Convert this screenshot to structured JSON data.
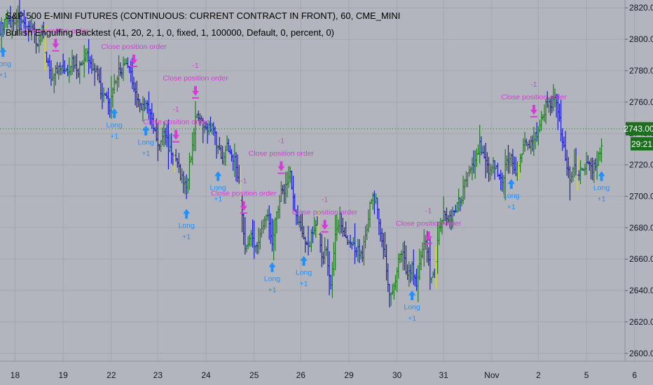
{
  "header": {
    "title": "S&P 500 E-MINI FUTURES (CONTINUOUS: CURRENT CONTRACT IN FRONT), 60, CME_MINI",
    "strategy": "Bullish Engulfing Backtest (41, 20, 2, 1, 0, fixed, 1, 100000, Default, 0, percent, 0)"
  },
  "colors": {
    "background": "#b2b5be",
    "grid": "#a3a6af",
    "bar_up": "#1f7a1f",
    "bar_down": "#1a1acc",
    "bar_flag": "#d8d82a",
    "long_signal": "#1e90ff",
    "exit_signal": "#d63bd6",
    "last_price_bg": "#1f6e1f",
    "axis_text": "#131722"
  },
  "price_axis": {
    "ticks": [
      2600,
      2620,
      2640,
      2660,
      2680,
      2700,
      2720,
      2740,
      2760,
      2780,
      2800,
      2820
    ],
    "labels": [
      "2600.00",
      "2620.00",
      "2640.00",
      "2660.00",
      "2680.00",
      "2700.00",
      "2720.00",
      "2740.00",
      "2760.00",
      "2780.00",
      "2800.00",
      "2820.00"
    ],
    "last_price": 2743,
    "last_price_label": "2743.00",
    "countdown_label": "29:21"
  },
  "time_axis": {
    "labels": [
      "18",
      "19",
      "22",
      "23",
      "24",
      "25",
      "26",
      "29",
      "30",
      "31",
      "Nov",
      "2",
      "5",
      "6"
    ]
  },
  "chart_data": {
    "type": "ohlc",
    "interval": "60",
    "ylim": [
      2595,
      2825
    ],
    "xlim": [
      0,
      410
    ],
    "bars_x_range": [
      0,
      400
    ],
    "x_tick_positions": [
      10,
      42,
      74,
      105,
      137,
      169,
      200,
      232,
      264,
      295,
      327,
      358,
      390,
      422
    ],
    "anchors": [
      [
        0,
        2806
      ],
      [
        4,
        2812
      ],
      [
        8,
        2810
      ],
      [
        13,
        2815
      ],
      [
        17,
        2805
      ],
      [
        21,
        2809
      ],
      [
        25,
        2796
      ],
      [
        28,
        2806
      ],
      [
        31,
        2788
      ],
      [
        34,
        2776
      ],
      [
        37,
        2780
      ],
      [
        41,
        2781
      ],
      [
        44,
        2778
      ],
      [
        48,
        2786
      ],
      [
        52,
        2780
      ],
      [
        55,
        2786
      ],
      [
        58,
        2790
      ],
      [
        61,
        2781
      ],
      [
        64,
        2782
      ],
      [
        67,
        2768
      ],
      [
        70,
        2763
      ],
      [
        73,
        2757
      ],
      [
        76,
        2770
      ],
      [
        79,
        2779
      ],
      [
        82,
        2782
      ],
      [
        85,
        2783
      ],
      [
        88,
        2774
      ],
      [
        91,
        2762
      ],
      [
        94,
        2757
      ],
      [
        97,
        2759
      ],
      [
        100,
        2752
      ],
      [
        103,
        2740
      ],
      [
        106,
        2730
      ],
      [
        109,
        2742
      ],
      [
        112,
        2732
      ],
      [
        115,
        2726
      ],
      [
        118,
        2720
      ],
      [
        121,
        2711
      ],
      [
        124,
        2706
      ],
      [
        127,
        2726
      ],
      [
        130,
        2750
      ],
      [
        133,
        2748
      ],
      [
        136,
        2742
      ],
      [
        139,
        2745
      ],
      [
        142,
        2742
      ],
      [
        145,
        2730
      ],
      [
        148,
        2724
      ],
      [
        151,
        2732
      ],
      [
        154,
        2728
      ],
      [
        157,
        2720
      ],
      [
        160,
        2700
      ],
      [
        163,
        2665
      ],
      [
        166,
        2676
      ],
      [
        169,
        2670
      ],
      [
        172,
        2671
      ],
      [
        175,
        2682
      ],
      [
        178,
        2688
      ],
      [
        181,
        2672
      ],
      [
        184,
        2690
      ],
      [
        187,
        2702
      ],
      [
        190,
        2706
      ],
      [
        193,
        2716
      ],
      [
        196,
        2690
      ],
      [
        199,
        2681
      ],
      [
        202,
        2676
      ],
      [
        205,
        2667
      ],
      [
        208,
        2678
      ],
      [
        211,
        2680
      ],
      [
        214,
        2660
      ],
      [
        217,
        2667
      ],
      [
        220,
        2642
      ],
      [
        223,
        2676
      ],
      [
        226,
        2688
      ],
      [
        229,
        2675
      ],
      [
        232,
        2672
      ],
      [
        235,
        2668
      ],
      [
        238,
        2666
      ],
      [
        241,
        2664
      ],
      [
        244,
        2680
      ],
      [
        247,
        2700
      ],
      [
        250,
        2697
      ],
      [
        253,
        2678
      ],
      [
        256,
        2660
      ],
      [
        259,
        2636
      ],
      [
        262,
        2640
      ],
      [
        265,
        2660
      ],
      [
        268,
        2663
      ],
      [
        271,
        2650
      ],
      [
        274,
        2654
      ],
      [
        277,
        2645
      ],
      [
        280,
        2660
      ],
      [
        283,
        2672
      ],
      [
        286,
        2650
      ],
      [
        289,
        2648
      ],
      [
        292,
        2680
      ],
      [
        295,
        2690
      ],
      [
        298,
        2686
      ],
      [
        301,
        2688
      ],
      [
        304,
        2694
      ],
      [
        307,
        2700
      ],
      [
        310,
        2712
      ],
      [
        313,
        2716
      ],
      [
        316,
        2724
      ],
      [
        319,
        2732
      ],
      [
        322,
        2726
      ],
      [
        325,
        2716
      ],
      [
        328,
        2720
      ],
      [
        331,
        2716
      ],
      [
        334,
        2710
      ],
      [
        337,
        2722
      ],
      [
        340,
        2725
      ],
      [
        343,
        2716
      ],
      [
        346,
        2724
      ],
      [
        349,
        2735
      ],
      [
        352,
        2732
      ],
      [
        355,
        2738
      ],
      [
        358,
        2740
      ],
      [
        361,
        2752
      ],
      [
        364,
        2760
      ],
      [
        367,
        2758
      ],
      [
        370,
        2762
      ],
      [
        373,
        2740
      ],
      [
        376,
        2725
      ],
      [
        379,
        2710
      ],
      [
        382,
        2718
      ],
      [
        385,
        2715
      ],
      [
        388,
        2718
      ],
      [
        391,
        2720
      ],
      [
        394,
        2718
      ],
      [
        397,
        2722
      ],
      [
        400,
        2730
      ],
      [
        403,
        2736
      ],
      [
        406,
        2741
      ],
      [
        409,
        2743
      ]
    ],
    "yellow_bar_indices": [
      30,
      116,
      160,
      212,
      290,
      345,
      384
    ],
    "long_entries": [
      {
        "x": 2,
        "label": "Long",
        "qty": "+1"
      },
      {
        "x": 76,
        "label": "Long",
        "qty": "+1"
      },
      {
        "x": 97,
        "label": "Long",
        "qty": "+1"
      },
      {
        "x": 124,
        "label": "Long",
        "qty": "+1"
      },
      {
        "x": 145,
        "label": "Long",
        "qty": "+1"
      },
      {
        "x": 181,
        "label": "Long",
        "qty": "+1"
      },
      {
        "x": 202,
        "label": "Long",
        "qty": "+1"
      },
      {
        "x": 274,
        "label": "Long",
        "qty": "+1"
      },
      {
        "x": 340,
        "label": "Long",
        "qty": "+1"
      },
      {
        "x": 400,
        "label": "Long",
        "qty": "+1"
      }
    ],
    "exit_orders": [
      {
        "x": 37,
        "label": "Close position order",
        "qty": ""
      },
      {
        "x": 89,
        "label": "Close position order",
        "qty": ""
      },
      {
        "x": 130,
        "label": "Close position order",
        "qty": "-1"
      },
      {
        "x": 117,
        "label": "Close position order",
        "qty": "-1"
      },
      {
        "x": 162,
        "label": "Close position order",
        "qty": "-1"
      },
      {
        "x": 187,
        "label": "Close position order",
        "qty": "-1"
      },
      {
        "x": 216,
        "label": "Close position order",
        "qty": "-1"
      },
      {
        "x": 285,
        "label": "Close position order",
        "qty": "-1"
      },
      {
        "x": 355,
        "label": "Close position order",
        "qty": "-1"
      }
    ]
  }
}
